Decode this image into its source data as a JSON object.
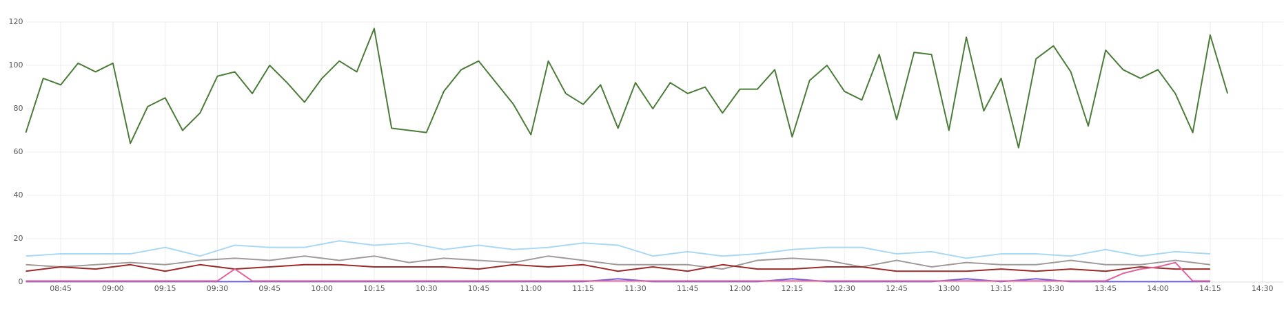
{
  "chart_data": {
    "type": "line",
    "xlim": [
      "08:35",
      "14:36"
    ],
    "xticks": [
      "08:45",
      "09:00",
      "09:15",
      "09:30",
      "09:45",
      "10:00",
      "10:15",
      "10:30",
      "10:45",
      "11:00",
      "11:15",
      "11:30",
      "11:45",
      "12:00",
      "12:15",
      "12:30",
      "12:45",
      "13:00",
      "13:15",
      "13:30",
      "13:45",
      "14:00",
      "14:15",
      "14:30"
    ],
    "ylim": [
      0,
      120
    ],
    "yticks": [
      0,
      20,
      40,
      60,
      80,
      100,
      120
    ],
    "grid": true,
    "series": [
      {
        "color": "#4a7c38",
        "x": [
          "08:35",
          "08:40",
          "08:45",
          "08:50",
          "08:55",
          "09:00",
          "09:05",
          "09:10",
          "09:15",
          "09:20",
          "09:25",
          "09:30",
          "09:35",
          "09:40",
          "09:45",
          "09:50",
          "09:55",
          "10:00",
          "10:05",
          "10:10",
          "10:15",
          "10:20",
          "10:25",
          "10:30",
          "10:35",
          "10:40",
          "10:45",
          "10:50",
          "10:55",
          "11:00",
          "11:05",
          "11:10",
          "11:15",
          "11:20",
          "11:25",
          "11:30",
          "11:35",
          "11:40",
          "11:45",
          "11:50",
          "11:55",
          "12:00",
          "12:05",
          "12:10",
          "12:15",
          "12:20",
          "12:25",
          "12:30",
          "12:35",
          "12:40",
          "12:45",
          "12:50",
          "12:55",
          "13:00",
          "13:05",
          "13:10",
          "13:15",
          "13:20",
          "13:25",
          "13:30",
          "13:35",
          "13:40",
          "13:45",
          "13:50",
          "13:55",
          "14:00",
          "14:05",
          "14:10",
          "14:15",
          "14:20"
        ],
        "values": [
          69,
          94,
          91,
          101,
          97,
          101,
          64,
          81,
          85,
          70,
          78,
          95,
          97,
          87,
          100,
          92,
          83,
          94,
          102,
          97,
          117,
          71,
          70,
          69,
          88,
          98,
          102,
          92,
          82,
          68,
          102,
          87,
          82,
          91,
          71,
          92,
          80,
          92,
          87,
          90,
          78,
          89,
          89,
          98,
          67,
          93,
          100,
          88,
          84,
          105,
          75,
          106,
          105,
          70,
          113,
          79,
          94,
          62,
          103,
          109,
          97,
          72,
          107,
          98,
          94,
          98,
          87,
          69,
          114,
          87
        ]
      },
      {
        "color": "#a9d8f5",
        "x": [
          "08:35",
          "08:45",
          "08:55",
          "09:05",
          "09:15",
          "09:25",
          "09:35",
          "09:45",
          "09:55",
          "10:05",
          "10:15",
          "10:25",
          "10:35",
          "10:45",
          "10:55",
          "11:05",
          "11:15",
          "11:25",
          "11:35",
          "11:45",
          "11:55",
          "12:05",
          "12:15",
          "12:25",
          "12:35",
          "12:45",
          "12:55",
          "13:05",
          "13:15",
          "13:25",
          "13:35",
          "13:45",
          "13:55",
          "14:05",
          "14:15"
        ],
        "values": [
          12,
          13,
          13,
          13,
          16,
          12,
          17,
          16,
          16,
          19,
          17,
          18,
          15,
          17,
          15,
          16,
          18,
          17,
          12,
          14,
          12,
          13,
          15,
          16,
          16,
          13,
          14,
          11,
          13,
          13,
          12,
          15,
          12,
          14,
          13
        ]
      },
      {
        "color": "#a09a9a",
        "x": [
          "08:35",
          "08:45",
          "08:55",
          "09:05",
          "09:15",
          "09:25",
          "09:35",
          "09:45",
          "09:55",
          "10:05",
          "10:15",
          "10:25",
          "10:35",
          "10:45",
          "10:55",
          "11:05",
          "11:15",
          "11:25",
          "11:35",
          "11:45",
          "11:55",
          "12:05",
          "12:15",
          "12:25",
          "12:35",
          "12:45",
          "12:55",
          "13:05",
          "13:15",
          "13:25",
          "13:35",
          "13:45",
          "13:55",
          "14:05",
          "14:15"
        ],
        "values": [
          8,
          7,
          8,
          9,
          8,
          10,
          11,
          10,
          12,
          10,
          12,
          9,
          11,
          10,
          9,
          12,
          10,
          8,
          8,
          8,
          6,
          10,
          11,
          10,
          7,
          10,
          7,
          9,
          8,
          8,
          10,
          8,
          8,
          10,
          8
        ]
      },
      {
        "color": "#9b2a2a",
        "x": [
          "08:35",
          "08:45",
          "08:55",
          "09:05",
          "09:15",
          "09:25",
          "09:35",
          "09:45",
          "09:55",
          "10:05",
          "10:15",
          "10:25",
          "10:35",
          "10:45",
          "10:55",
          "11:05",
          "11:15",
          "11:25",
          "11:35",
          "11:45",
          "11:55",
          "12:05",
          "12:15",
          "12:25",
          "12:35",
          "12:45",
          "12:55",
          "13:05",
          "13:15",
          "13:25",
          "13:35",
          "13:45",
          "13:55",
          "14:05",
          "14:15"
        ],
        "values": [
          5,
          7,
          6,
          8,
          5,
          8,
          6,
          7,
          8,
          8,
          7,
          7,
          7,
          6,
          8,
          7,
          8,
          5,
          7,
          5,
          8,
          6,
          6,
          7,
          7,
          5,
          5,
          5,
          6,
          5,
          6,
          5,
          7,
          6,
          6
        ]
      },
      {
        "color": "#7060e0",
        "x": [
          "08:35",
          "08:45",
          "08:55",
          "09:05",
          "09:15",
          "09:25",
          "09:35",
          "09:45",
          "09:55",
          "10:05",
          "10:15",
          "10:25",
          "10:35",
          "10:45",
          "10:55",
          "11:05",
          "11:15",
          "11:25",
          "11:35",
          "11:45",
          "11:55",
          "12:05",
          "12:15",
          "12:25",
          "12:35",
          "12:45",
          "12:55",
          "13:05",
          "13:15",
          "13:25",
          "13:35",
          "13:45",
          "13:55",
          "14:05",
          "14:15"
        ],
        "values": [
          0.2,
          0.2,
          0.2,
          0.2,
          0.2,
          0.2,
          0.2,
          0.2,
          0.2,
          0.2,
          0.2,
          0.2,
          0.2,
          0.2,
          0.2,
          0.2,
          0.2,
          1.5,
          0.2,
          0.2,
          0.2,
          0.2,
          1.5,
          0.2,
          0.2,
          0.2,
          0.2,
          1.5,
          0.2,
          1.5,
          0.2,
          0.2,
          0.2,
          0.2,
          0.2
        ]
      },
      {
        "color": "#e0649a",
        "x": [
          "08:35",
          "08:40",
          "08:45",
          "08:50",
          "08:55",
          "09:00",
          "09:05",
          "09:10",
          "09:15",
          "09:20",
          "09:25",
          "09:30",
          "09:35",
          "09:40",
          "09:45",
          "09:50",
          "09:55",
          "10:00",
          "10:05",
          "10:10",
          "10:15",
          "10:20",
          "10:25",
          "10:30",
          "10:35",
          "10:40",
          "10:45",
          "10:50",
          "10:55",
          "11:00",
          "11:05",
          "11:10",
          "11:15",
          "11:20",
          "11:25",
          "11:30",
          "11:35",
          "11:40",
          "11:45",
          "11:50",
          "11:55",
          "12:00",
          "12:05",
          "12:10",
          "12:15",
          "12:20",
          "12:25",
          "12:30",
          "12:35",
          "12:40",
          "12:45",
          "12:50",
          "12:55",
          "13:00",
          "13:05",
          "13:10",
          "13:15",
          "13:20",
          "13:25",
          "13:30",
          "13:35",
          "13:40",
          "13:45",
          "13:50",
          "13:55",
          "14:00",
          "14:05",
          "14:10",
          "14:15"
        ],
        "values": [
          0.5,
          0.5,
          0.5,
          0.5,
          0.5,
          0.5,
          0.5,
          0.5,
          0.5,
          0.5,
          0.5,
          0.5,
          6,
          0.5,
          0.5,
          0.5,
          0.5,
          0.5,
          0.5,
          0.5,
          0.5,
          0.5,
          0.5,
          0.5,
          0.5,
          0.5,
          0.5,
          0.5,
          0.5,
          0.5,
          0.5,
          0.5,
          0.5,
          0.5,
          0.5,
          0.5,
          0.5,
          0.5,
          0.5,
          0.5,
          0.5,
          0.5,
          0.5,
          0.5,
          0.5,
          0.5,
          0.5,
          0.5,
          0.5,
          0.5,
          0.5,
          0.5,
          0.5,
          0.5,
          0.5,
          0.5,
          0.5,
          0.5,
          0.5,
          0.5,
          0.5,
          0.5,
          0.5,
          4,
          6,
          7,
          9,
          0.5,
          0.5
        ]
      }
    ]
  }
}
